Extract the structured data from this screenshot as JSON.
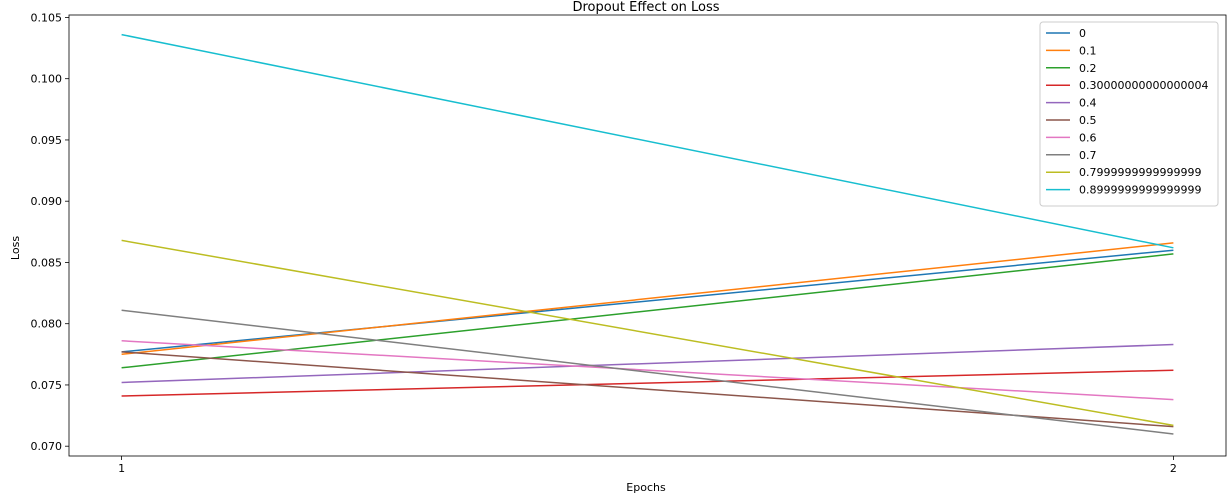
{
  "chart_data": {
    "type": "line",
    "title": "Dropout Effect on Loss",
    "xlabel": "Epochs",
    "ylabel": "Loss",
    "x": [
      1,
      2
    ],
    "xticks": [
      "1",
      "2"
    ],
    "xlim": [
      0.95,
      2.05
    ],
    "ylim": [
      0.0692,
      0.1052
    ],
    "yticks": [
      "0.070",
      "0.075",
      "0.080",
      "0.085",
      "0.090",
      "0.095",
      "0.100",
      "0.105"
    ],
    "legend_position": "top-right",
    "grid": false,
    "series": [
      {
        "name": "0",
        "color": "#1f77b4",
        "values": [
          0.0777,
          0.086
        ]
      },
      {
        "name": "0.1",
        "color": "#ff7f0e",
        "values": [
          0.0775,
          0.0866
        ]
      },
      {
        "name": "0.2",
        "color": "#2ca02c",
        "values": [
          0.0764,
          0.0857
        ]
      },
      {
        "name": "0.30000000000000004",
        "color": "#d62728",
        "values": [
          0.0741,
          0.0762
        ]
      },
      {
        "name": "0.4",
        "color": "#9467bd",
        "values": [
          0.0752,
          0.0783
        ]
      },
      {
        "name": "0.5",
        "color": "#8c564b",
        "values": [
          0.0777,
          0.0716
        ]
      },
      {
        "name": "0.6",
        "color": "#e377c2",
        "values": [
          0.0786,
          0.0738
        ]
      },
      {
        "name": "0.7",
        "color": "#7f7f7f",
        "values": [
          0.0811,
          0.071
        ]
      },
      {
        "name": "0.7999999999999999",
        "color": "#bcbd22",
        "values": [
          0.0868,
          0.0717
        ]
      },
      {
        "name": "0.8999999999999999",
        "color": "#17becf",
        "values": [
          0.1036,
          0.0862
        ]
      }
    ]
  }
}
